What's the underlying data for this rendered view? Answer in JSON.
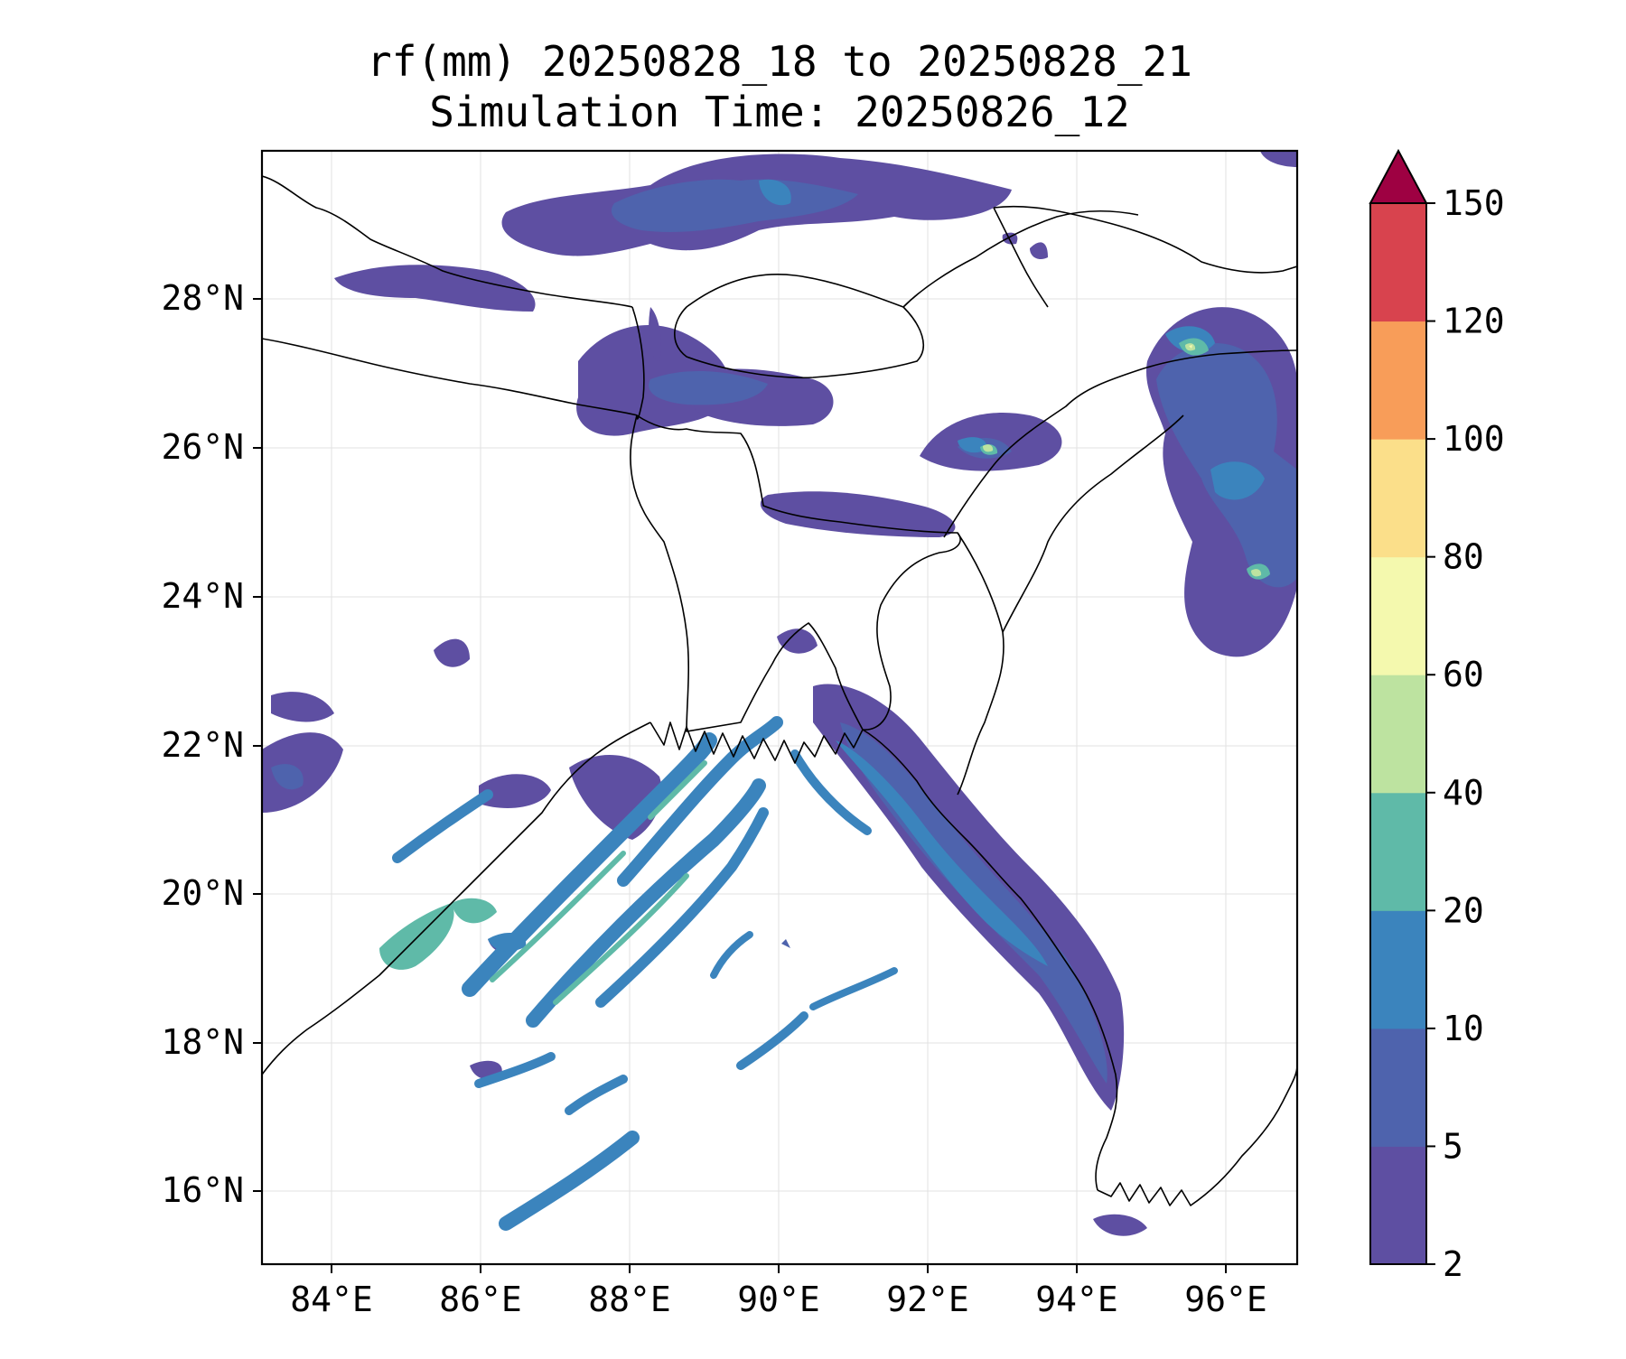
{
  "title": {
    "line1": "rf(mm) 20250828_18 to 20250828_21",
    "line2": "Simulation Time: 20250826_12"
  },
  "map": {
    "lon_ticks": [
      "84°E",
      "86°E",
      "88°E",
      "90°E",
      "92°E",
      "94°E",
      "96°E"
    ],
    "lat_ticks": [
      "28°N",
      "26°N",
      "24°N",
      "22°N",
      "20°N",
      "18°N",
      "16°N"
    ],
    "lon_range": [
      83.1,
      97.0
    ],
    "lat_range": [
      15.0,
      29.9
    ],
    "grid": true,
    "field": "rf(mm)"
  },
  "colorbar": {
    "ticks": [
      "2",
      "5",
      "10",
      "20",
      "40",
      "60",
      "80",
      "100",
      "120",
      "150"
    ],
    "colors": [
      "#5e4fa2",
      "#4e63ad",
      "#3b84bd",
      "#5fbaa8",
      "#bde3a0",
      "#f4f9ae",
      "#fbdf8a",
      "#f89d59",
      "#d8434e",
      "#9e0142"
    ],
    "extend": "max"
  }
}
